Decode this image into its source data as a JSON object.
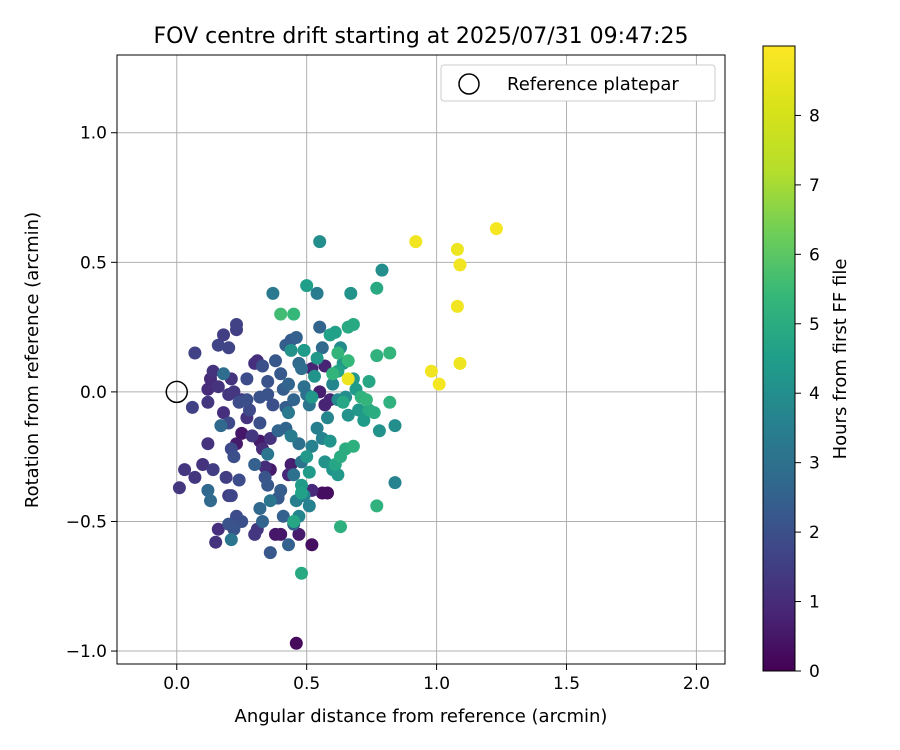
{
  "chart_data": {
    "type": "scatter",
    "title": "FOV centre drift starting at 2025/07/31 09:47:25",
    "xlabel": "Angular distance from reference (arcmin)",
    "ylabel": "Rotation from reference (arcmin)",
    "xlim": [
      -0.23,
      2.11
    ],
    "ylim": [
      -1.05,
      1.3
    ],
    "xticks": [
      0.0,
      0.5,
      1.0,
      1.5,
      2.0
    ],
    "xtick_labels": [
      "0.0",
      "0.5",
      "1.0",
      "1.5",
      "2.0"
    ],
    "yticks": [
      -1.0,
      -0.5,
      0.0,
      0.5,
      1.0
    ],
    "ytick_labels": [
      "−1.0",
      "−0.5",
      "0.0",
      "0.5",
      "1.0"
    ],
    "grid": true,
    "legend": {
      "placement": "top-right",
      "entries": [
        "Reference platepar"
      ]
    },
    "reference_point": {
      "x": 0.0,
      "y": 0.0
    },
    "colorbar": {
      "label": "Hours from first FF file",
      "colormap": "viridis",
      "range": [
        0,
        9
      ],
      "ticks": [
        0,
        1,
        2,
        3,
        4,
        5,
        6,
        7,
        8
      ],
      "tick_labels": [
        "0",
        "1",
        "2",
        "3",
        "4",
        "5",
        "6",
        "7",
        "8"
      ]
    },
    "points": [
      {
        "x": 0.46,
        "y": -0.97,
        "h": 0.2
      },
      {
        "x": 0.52,
        "y": -0.59,
        "h": 0.3
      },
      {
        "x": 0.56,
        "y": -0.39,
        "h": 0.3
      },
      {
        "x": 0.58,
        "y": -0.39,
        "h": 0.3
      },
      {
        "x": 0.38,
        "y": -0.55,
        "h": 0.5
      },
      {
        "x": 0.4,
        "y": -0.55,
        "h": 0.5
      },
      {
        "x": 0.47,
        "y": -0.55,
        "h": 0.6
      },
      {
        "x": 0.25,
        "y": -0.16,
        "h": 0.5
      },
      {
        "x": 0.32,
        "y": -0.19,
        "h": 0.6
      },
      {
        "x": 0.23,
        "y": -0.2,
        "h": 0.6
      },
      {
        "x": 0.36,
        "y": -0.3,
        "h": 0.6
      },
      {
        "x": 0.44,
        "y": -0.28,
        "h": 0.7
      },
      {
        "x": 0.52,
        "y": 0.09,
        "h": 0.8
      },
      {
        "x": 0.55,
        "y": 0.0,
        "h": 0.7
      },
      {
        "x": 0.57,
        "y": 0.1,
        "h": 0.8
      },
      {
        "x": 0.57,
        "y": -0.05,
        "h": 0.8
      },
      {
        "x": 0.59,
        "y": -0.03,
        "h": 0.8
      },
      {
        "x": 0.52,
        "y": -0.38,
        "h": 0.9
      },
      {
        "x": 0.43,
        "y": -0.32,
        "h": 0.9
      },
      {
        "x": 0.12,
        "y": 0.01,
        "h": 1.0
      },
      {
        "x": 0.13,
        "y": 0.05,
        "h": 1.0
      },
      {
        "x": 0.14,
        "y": 0.08,
        "h": 1.2
      },
      {
        "x": 0.12,
        "y": -0.04,
        "h": 1.3
      },
      {
        "x": 0.21,
        "y": 0.05,
        "h": 1.2
      },
      {
        "x": 0.16,
        "y": 0.02,
        "h": 1.2
      },
      {
        "x": 0.18,
        "y": -0.08,
        "h": 1.1
      },
      {
        "x": 0.2,
        "y": -0.01,
        "h": 1.3
      },
      {
        "x": 0.22,
        "y": 0.0,
        "h": 1.3
      },
      {
        "x": 0.25,
        "y": -0.03,
        "h": 1.4
      },
      {
        "x": 0.27,
        "y": -0.1,
        "h": 1.2
      },
      {
        "x": 0.3,
        "y": 0.11,
        "h": 1.1
      },
      {
        "x": 0.31,
        "y": 0.12,
        "h": 1.1
      },
      {
        "x": 0.29,
        "y": -0.17,
        "h": 1.3
      },
      {
        "x": 0.33,
        "y": -0.22,
        "h": 1.0
      },
      {
        "x": 0.34,
        "y": -0.29,
        "h": 1.0
      },
      {
        "x": 0.36,
        "y": -0.18,
        "h": 1.2
      },
      {
        "x": 0.3,
        "y": -0.55,
        "h": 1.3
      },
      {
        "x": 0.31,
        "y": -0.53,
        "h": 1.3
      },
      {
        "x": 0.16,
        "y": -0.53,
        "h": 1.1
      },
      {
        "x": 0.15,
        "y": -0.58,
        "h": 1.2
      },
      {
        "x": 0.1,
        "y": -0.28,
        "h": 1.2
      },
      {
        "x": 0.12,
        "y": -0.2,
        "h": 1.2
      },
      {
        "x": 0.07,
        "y": -0.33,
        "h": 1.3
      },
      {
        "x": 0.03,
        "y": -0.3,
        "h": 1.3
      },
      {
        "x": 0.01,
        "y": -0.37,
        "h": 1.3
      },
      {
        "x": 0.14,
        "y": -0.3,
        "h": 1.5
      },
      {
        "x": 0.19,
        "y": -0.33,
        "h": 1.5
      },
      {
        "x": 0.2,
        "y": -0.4,
        "h": 1.5
      },
      {
        "x": 0.21,
        "y": -0.4,
        "h": 1.7
      },
      {
        "x": 0.06,
        "y": -0.06,
        "h": 1.6
      },
      {
        "x": 0.07,
        "y": 0.15,
        "h": 1.6
      },
      {
        "x": 0.16,
        "y": 0.18,
        "h": 1.7
      },
      {
        "x": 0.18,
        "y": 0.22,
        "h": 1.5
      },
      {
        "x": 0.2,
        "y": 0.17,
        "h": 1.7
      },
      {
        "x": 0.23,
        "y": 0.24,
        "h": 1.5
      },
      {
        "x": 0.23,
        "y": 0.26,
        "h": 1.6
      },
      {
        "x": 0.27,
        "y": 0.05,
        "h": 1.9
      },
      {
        "x": 0.28,
        "y": -0.07,
        "h": 1.8
      },
      {
        "x": 0.24,
        "y": -0.04,
        "h": 1.9
      },
      {
        "x": 0.27,
        "y": -0.03,
        "h": 2.0
      },
      {
        "x": 0.2,
        "y": -0.12,
        "h": 1.8
      },
      {
        "x": 0.21,
        "y": -0.22,
        "h": 1.8
      },
      {
        "x": 0.22,
        "y": -0.25,
        "h": 2.0
      },
      {
        "x": 0.24,
        "y": -0.34,
        "h": 1.9
      },
      {
        "x": 0.23,
        "y": -0.48,
        "h": 1.9
      },
      {
        "x": 0.25,
        "y": -0.5,
        "h": 2.0
      },
      {
        "x": 0.2,
        "y": -0.51,
        "h": 2.1
      },
      {
        "x": 0.22,
        "y": -0.53,
        "h": 2.1
      },
      {
        "x": 0.33,
        "y": 0.1,
        "h": 2.0
      },
      {
        "x": 0.35,
        "y": 0.04,
        "h": 2.1
      },
      {
        "x": 0.35,
        "y": -0.01,
        "h": 2.1
      },
      {
        "x": 0.37,
        "y": -0.05,
        "h": 2.0
      },
      {
        "x": 0.38,
        "y": 0.12,
        "h": 2.2
      },
      {
        "x": 0.32,
        "y": -0.02,
        "h": 2.1
      },
      {
        "x": 0.32,
        "y": -0.12,
        "h": 2.0
      },
      {
        "x": 0.34,
        "y": -0.33,
        "h": 2.1
      },
      {
        "x": 0.35,
        "y": -0.36,
        "h": 2.2
      },
      {
        "x": 0.36,
        "y": -0.62,
        "h": 2.2
      },
      {
        "x": 0.39,
        "y": -0.41,
        "h": 2.3
      },
      {
        "x": 0.4,
        "y": -0.38,
        "h": 2.4
      },
      {
        "x": 0.41,
        "y": -0.48,
        "h": 2.5
      },
      {
        "x": 0.43,
        "y": -0.59,
        "h": 2.5
      },
      {
        "x": 0.45,
        "y": -0.51,
        "h": 2.4
      },
      {
        "x": 0.4,
        "y": 0.07,
        "h": 2.3
      },
      {
        "x": 0.41,
        "y": 0.01,
        "h": 2.4
      },
      {
        "x": 0.42,
        "y": -0.06,
        "h": 2.4
      },
      {
        "x": 0.42,
        "y": 0.18,
        "h": 2.4
      },
      {
        "x": 0.44,
        "y": 0.2,
        "h": 2.3
      },
      {
        "x": 0.46,
        "y": 0.21,
        "h": 2.5
      },
      {
        "x": 0.43,
        "y": 0.03,
        "h": 2.6
      },
      {
        "x": 0.45,
        "y": -0.03,
        "h": 2.6
      },
      {
        "x": 0.39,
        "y": -0.15,
        "h": 2.6
      },
      {
        "x": 0.42,
        "y": -0.14,
        "h": 2.6
      },
      {
        "x": 0.3,
        "y": -0.28,
        "h": 2.5
      },
      {
        "x": 0.32,
        "y": -0.45,
        "h": 2.7
      },
      {
        "x": 0.33,
        "y": -0.5,
        "h": 2.6
      },
      {
        "x": 0.12,
        "y": -0.38,
        "h": 2.7
      },
      {
        "x": 0.13,
        "y": -0.42,
        "h": 2.8
      },
      {
        "x": 0.17,
        "y": -0.13,
        "h": 2.7
      },
      {
        "x": 0.18,
        "y": 0.07,
        "h": 2.9
      },
      {
        "x": 0.21,
        "y": -0.57,
        "h": 3.2
      },
      {
        "x": 0.55,
        "y": 0.25,
        "h": 2.6
      },
      {
        "x": 0.56,
        "y": 0.17,
        "h": 2.8
      },
      {
        "x": 0.47,
        "y": 0.11,
        "h": 2.8
      },
      {
        "x": 0.48,
        "y": 0.09,
        "h": 2.9
      },
      {
        "x": 0.49,
        "y": 0.02,
        "h": 3.0
      },
      {
        "x": 0.5,
        "y": -0.01,
        "h": 3.0
      },
      {
        "x": 0.51,
        "y": -0.05,
        "h": 3.1
      },
      {
        "x": 0.47,
        "y": -0.2,
        "h": 3.0
      },
      {
        "x": 0.48,
        "y": -0.27,
        "h": 3.1
      },
      {
        "x": 0.45,
        "y": -0.32,
        "h": 3.0
      },
      {
        "x": 0.37,
        "y": 0.38,
        "h": 3.3
      },
      {
        "x": 0.54,
        "y": 0.38,
        "h": 3.4
      },
      {
        "x": 0.35,
        "y": -0.24,
        "h": 3.2
      },
      {
        "x": 0.36,
        "y": -0.42,
        "h": 3.2
      },
      {
        "x": 0.43,
        "y": -0.08,
        "h": 3.3
      },
      {
        "x": 0.44,
        "y": -0.17,
        "h": 3.4
      },
      {
        "x": 0.46,
        "y": -0.42,
        "h": 3.5
      },
      {
        "x": 0.47,
        "y": -0.48,
        "h": 3.7
      },
      {
        "x": 0.49,
        "y": -0.4,
        "h": 3.6
      },
      {
        "x": 0.51,
        "y": -0.44,
        "h": 3.6
      },
      {
        "x": 0.52,
        "y": -0.21,
        "h": 3.6
      },
      {
        "x": 0.54,
        "y": -0.14,
        "h": 3.5
      },
      {
        "x": 0.56,
        "y": -0.18,
        "h": 3.6
      },
      {
        "x": 0.58,
        "y": -0.1,
        "h": 3.7
      },
      {
        "x": 0.6,
        "y": 0.03,
        "h": 3.7
      },
      {
        "x": 0.62,
        "y": -0.03,
        "h": 3.8
      },
      {
        "x": 0.63,
        "y": 0.17,
        "h": 3.9
      },
      {
        "x": 0.55,
        "y": 0.58,
        "h": 4.0
      },
      {
        "x": 0.79,
        "y": 0.47,
        "h": 4.0
      },
      {
        "x": 0.67,
        "y": 0.38,
        "h": 4.1
      },
      {
        "x": 0.65,
        "y": -0.02,
        "h": 4.0
      },
      {
        "x": 0.66,
        "y": -0.09,
        "h": 4.1
      },
      {
        "x": 0.59,
        "y": -0.19,
        "h": 4.2
      },
      {
        "x": 0.57,
        "y": -0.27,
        "h": 4.1
      },
      {
        "x": 0.6,
        "y": -0.3,
        "h": 4.2
      },
      {
        "x": 0.62,
        "y": -0.32,
        "h": 4.3
      },
      {
        "x": 0.84,
        "y": -0.35,
        "h": 3.6
      },
      {
        "x": 0.84,
        "y": -0.13,
        "h": 4.0
      },
      {
        "x": 0.78,
        "y": -0.15,
        "h": 4.1
      },
      {
        "x": 0.7,
        "y": -0.07,
        "h": 4.3
      },
      {
        "x": 0.72,
        "y": -0.11,
        "h": 4.4
      },
      {
        "x": 0.68,
        "y": 0.05,
        "h": 4.3
      },
      {
        "x": 0.69,
        "y": 0.01,
        "h": 4.4
      },
      {
        "x": 0.64,
        "y": 0.11,
        "h": 4.3
      },
      {
        "x": 0.53,
        "y": 0.06,
        "h": 4.2
      },
      {
        "x": 0.54,
        "y": 0.13,
        "h": 4.3
      },
      {
        "x": 0.52,
        "y": -0.02,
        "h": 4.3
      },
      {
        "x": 0.44,
        "y": 0.16,
        "h": 4.1
      },
      {
        "x": 0.49,
        "y": 0.16,
        "h": 4.4
      },
      {
        "x": 0.5,
        "y": 0.41,
        "h": 4.5
      },
      {
        "x": 0.51,
        "y": -0.31,
        "h": 4.4
      },
      {
        "x": 0.5,
        "y": -0.25,
        "h": 4.3
      },
      {
        "x": 0.48,
        "y": -0.36,
        "h": 4.4
      },
      {
        "x": 0.48,
        "y": -0.39,
        "h": 4.6
      },
      {
        "x": 0.45,
        "y": -0.5,
        "h": 4.8
      },
      {
        "x": 0.48,
        "y": -0.7,
        "h": 4.9
      },
      {
        "x": 0.59,
        "y": 0.22,
        "h": 4.6
      },
      {
        "x": 0.61,
        "y": 0.23,
        "h": 4.6
      },
      {
        "x": 0.62,
        "y": 0.08,
        "h": 4.7
      },
      {
        "x": 0.64,
        "y": -0.04,
        "h": 4.8
      },
      {
        "x": 0.66,
        "y": 0.25,
        "h": 4.9
      },
      {
        "x": 0.68,
        "y": 0.26,
        "h": 4.9
      },
      {
        "x": 0.77,
        "y": 0.4,
        "h": 4.9
      },
      {
        "x": 0.74,
        "y": 0.04,
        "h": 4.8
      },
      {
        "x": 0.74,
        "y": -0.07,
        "h": 4.9
      },
      {
        "x": 0.76,
        "y": -0.08,
        "h": 5.0
      },
      {
        "x": 0.61,
        "y": -0.28,
        "h": 4.8
      },
      {
        "x": 0.63,
        "y": -0.25,
        "h": 5.0
      },
      {
        "x": 0.65,
        "y": -0.22,
        "h": 5.0
      },
      {
        "x": 0.68,
        "y": -0.21,
        "h": 5.1
      },
      {
        "x": 0.63,
        "y": -0.52,
        "h": 5.1
      },
      {
        "x": 0.77,
        "y": -0.44,
        "h": 5.2
      },
      {
        "x": 0.77,
        "y": 0.14,
        "h": 5.2
      },
      {
        "x": 0.82,
        "y": 0.15,
        "h": 5.3
      },
      {
        "x": 0.82,
        "y": -0.04,
        "h": 5.2
      },
      {
        "x": 0.71,
        "y": -0.02,
        "h": 5.2
      },
      {
        "x": 0.73,
        "y": -0.03,
        "h": 5.3
      },
      {
        "x": 0.6,
        "y": 0.07,
        "h": 5.3
      },
      {
        "x": 0.62,
        "y": 0.15,
        "h": 5.3
      },
      {
        "x": 0.66,
        "y": 0.12,
        "h": 5.4
      },
      {
        "x": 0.45,
        "y": 0.3,
        "h": 5.4
      },
      {
        "x": 0.4,
        "y": 0.3,
        "h": 5.6
      },
      {
        "x": 0.66,
        "y": 0.05,
        "h": 8.6
      },
      {
        "x": 0.92,
        "y": 0.58,
        "h": 8.7
      },
      {
        "x": 1.08,
        "y": 0.55,
        "h": 8.6
      },
      {
        "x": 1.09,
        "y": 0.49,
        "h": 8.7
      },
      {
        "x": 1.23,
        "y": 0.63,
        "h": 8.8
      },
      {
        "x": 1.08,
        "y": 0.33,
        "h": 8.7
      },
      {
        "x": 1.09,
        "y": 0.11,
        "h": 8.6
      },
      {
        "x": 0.98,
        "y": 0.08,
        "h": 8.7
      },
      {
        "x": 1.01,
        "y": 0.03,
        "h": 8.8
      }
    ]
  }
}
